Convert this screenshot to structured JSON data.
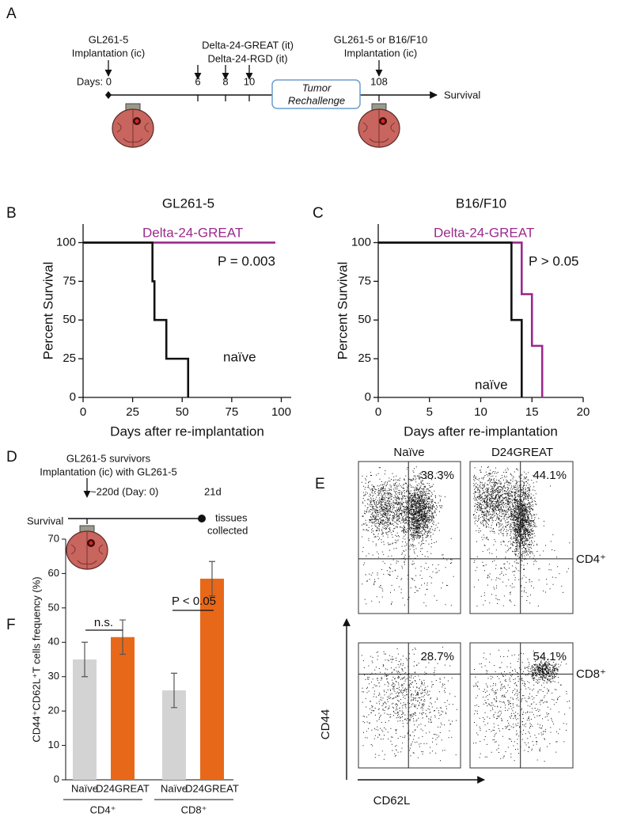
{
  "panel_labels": [
    "A",
    "B",
    "C",
    "D",
    "E",
    "F"
  ],
  "panel_a": {
    "start_label": [
      "GL261-5",
      "Implantation (ic)"
    ],
    "treatments": [
      "Delta-24-GREAT (it)",
      "Delta-24-RGD (it)"
    ],
    "rechallenge_label": [
      "GL261-5 or B16/F10",
      "Implantation (ic)"
    ],
    "days_label": "Days: 0",
    "days": [
      "6",
      "8",
      "10",
      "108"
    ],
    "box": [
      "Tumor",
      "Rechallenge"
    ],
    "end": "Survival"
  },
  "panel_d": {
    "header": [
      "GL261-5 survivors",
      "Implantation (ic) with GL261-5"
    ],
    "start": "~220d (Day: 0)",
    "end_day": "21d",
    "end_label": [
      "tissues",
      "collected"
    ],
    "axis": "Survival"
  },
  "panel_e": {
    "columns": [
      "Naïve",
      "D24GREAT"
    ],
    "rows": [
      "CD4⁺",
      "CD8⁺"
    ],
    "percentages": [
      [
        "38.3%",
        "44.1%"
      ],
      [
        "28.7%",
        "54.1%"
      ]
    ],
    "y_label": "CD44",
    "x_label": "CD62L"
  },
  "chart_data": [
    {
      "type": "line",
      "step": true,
      "title": "GL261-5",
      "x_label": "Days after re-implantation",
      "y_label": "Percent Survival",
      "xlim": [
        0,
        105
      ],
      "ylim": [
        0,
        112
      ],
      "xticks": [
        0,
        25,
        50,
        75,
        100
      ],
      "yticks": [
        0,
        25,
        50,
        75,
        100
      ],
      "series": [
        {
          "name": "Delta-24-GREAT",
          "color": "#9b2a8c",
          "x": [
            0,
            97
          ],
          "values": [
            100,
            100
          ]
        },
        {
          "name": "naïve",
          "color": "#111111",
          "x": [
            0,
            35,
            36,
            42,
            53
          ],
          "values": [
            100,
            75,
            50,
            25,
            0
          ]
        }
      ],
      "annotations": [
        "P = 0.003"
      ]
    },
    {
      "type": "line",
      "step": true,
      "title": "B16/F10",
      "x_label": "Days after re-implantation",
      "y_label": "Percent Survival",
      "xlim": [
        0,
        20
      ],
      "ylim": [
        0,
        112
      ],
      "xticks": [
        0,
        5,
        10,
        15,
        20
      ],
      "yticks": [
        0,
        25,
        50,
        75,
        100
      ],
      "series": [
        {
          "name": "Delta-24-GREAT",
          "color": "#9b2a8c",
          "x": [
            0,
            14,
            15,
            16
          ],
          "values": [
            100,
            66.7,
            33.3,
            0
          ]
        },
        {
          "name": "naïve",
          "color": "#111111",
          "x": [
            0,
            13,
            14
          ],
          "values": [
            100,
            50,
            0
          ]
        }
      ],
      "annotations": [
        "P > 0.05"
      ]
    },
    {
      "type": "bar",
      "y_label": "CD44⁺CD62L⁺T cells frequency (%)",
      "categories": [
        "Naïve",
        "D24GREAT",
        "Naïve",
        "D24GREAT"
      ],
      "values": [
        35,
        41.5,
        26,
        58.5
      ],
      "errors": [
        5,
        5,
        5,
        5
      ],
      "colors": [
        "#d3d3d3",
        "#e8681a",
        "#d3d3d3",
        "#e8681a"
      ],
      "groups": [
        "CD4⁺",
        "CD8⁺"
      ],
      "ylim": [
        0,
        70
      ],
      "yticks": [
        0,
        10,
        20,
        30,
        40,
        50,
        60,
        70
      ],
      "annotations": [
        "n.s.",
        "P < 0.05"
      ]
    }
  ]
}
